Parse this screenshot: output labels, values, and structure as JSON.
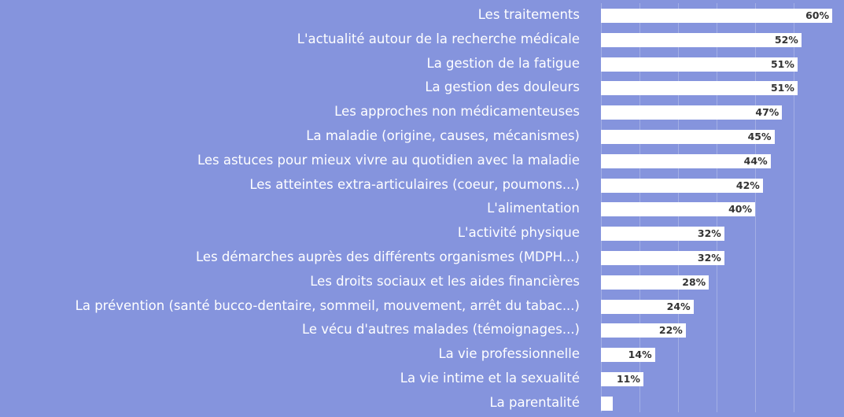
{
  "chart_data": {
    "type": "bar",
    "orientation": "horizontal",
    "title": "",
    "xlabel": "",
    "ylabel": "",
    "xlim": [
      0,
      60
    ],
    "grid": true,
    "gridlines_pct": [
      0,
      10,
      20,
      30,
      40,
      50
    ],
    "value_suffix": "%",
    "colors": {
      "background": "#8594dd",
      "bar": "#ffffff",
      "label": "#ffffff",
      "value": "#333333"
    },
    "categories": [
      "Les traitements",
      "L'actualité autour de la recherche médicale",
      "La gestion de la fatigue",
      "La gestion des douleurs",
      "Les approches non médicamenteuses",
      "La maladie (origine, causes, mécanismes)",
      "Les astuces pour mieux vivre au quotidien avec la maladie",
      "Les atteintes extra-articulaires (coeur, poumons...)",
      "L'alimentation",
      "L'activité physique",
      "Les démarches auprès des différents organismes (MDPH...)",
      "Les droits sociaux et les aides financières",
      "La prévention (santé bucco-dentaire, sommeil, mouvement, arrêt du tabac...)",
      "Le vécu d'autres malades (témoignages...)",
      "La vie professionnelle",
      "La vie intime et la sexualité",
      "La parentalité"
    ],
    "values": [
      60,
      52,
      51,
      51,
      47,
      45,
      44,
      42,
      40,
      32,
      32,
      28,
      24,
      22,
      14,
      11,
      3
    ],
    "value_labels": [
      "60%",
      "52%",
      "51%",
      "51%",
      "47%",
      "45%",
      "44%",
      "42%",
      "40%",
      "32%",
      "32%",
      "28%",
      "24%",
      "22%",
      "14%",
      "11%",
      ""
    ]
  }
}
